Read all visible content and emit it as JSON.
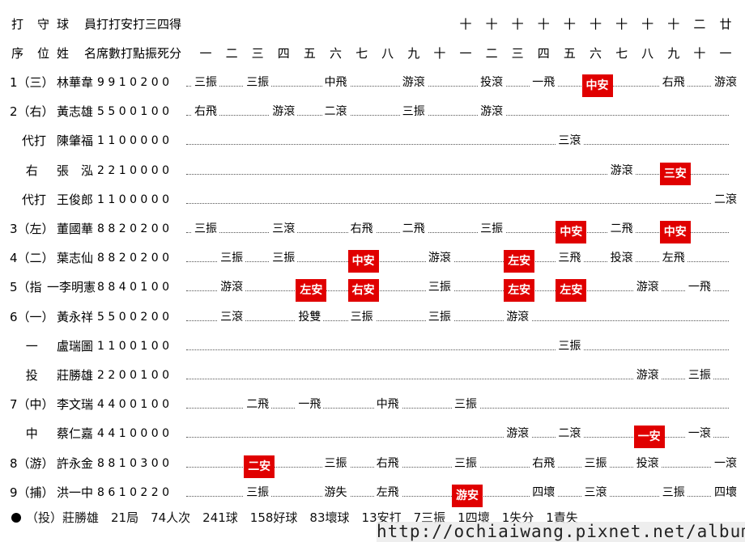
{
  "header_row1": {
    "cols": [
      "打",
      "守",
      "球",
      "員打打安打三四得"
    ],
    "innings_top": [
      "十",
      "十",
      "十",
      "十",
      "十",
      "十",
      "十",
      "十",
      "十",
      "二",
      "廿"
    ]
  },
  "header_row2": {
    "cols": [
      "序",
      "位",
      "姓",
      "名席數打點振死分"
    ],
    "innings": [
      "一",
      "二",
      "三",
      "四",
      "五",
      "六",
      "七",
      "八",
      "九",
      "十",
      "一",
      "二",
      "三",
      "四",
      "五",
      "六",
      "七",
      "八",
      "九",
      "十",
      "一"
    ]
  },
  "rows": [
    {
      "prefix": "1（三）",
      "name": "林華韋",
      "stats": "9 9 1 0 2 0 0",
      "plays": [
        {
          "inning": 1,
          "text": "三振"
        },
        {
          "inning": 3,
          "text": "三振"
        },
        {
          "inning": 6,
          "text": "中飛"
        },
        {
          "inning": 9,
          "text": "游滾"
        },
        {
          "inning": 12,
          "text": "投滾"
        },
        {
          "inning": 14,
          "text": "一飛"
        },
        {
          "inning": 16,
          "text": "中安",
          "hit": true
        },
        {
          "inning": 19,
          "text": "右飛"
        },
        {
          "inning": 21,
          "text": "游滾"
        }
      ]
    },
    {
      "prefix": "2（右）",
      "name": "黃志雄",
      "stats": "5 5 0 0 1 0 0",
      "plays": [
        {
          "inning": 1,
          "text": "右飛"
        },
        {
          "inning": 4,
          "text": "游滾"
        },
        {
          "inning": 6,
          "text": "二滾"
        },
        {
          "inning": 9,
          "text": "三振"
        },
        {
          "inning": 12,
          "text": "游滾"
        }
      ]
    },
    {
      "prefix": "　代打",
      "name": "陳肇福",
      "stats": "1 1 0 0 0 0 0",
      "plays": [
        {
          "inning": 15,
          "text": "三滾"
        }
      ]
    },
    {
      "prefix": "　 右",
      "name": "張　泓",
      "stats": "2 2 1 0 0 0 0",
      "plays": [
        {
          "inning": 17,
          "text": "游滾"
        },
        {
          "inning": 19,
          "text": "三安",
          "hit": true
        }
      ]
    },
    {
      "prefix": "　代打",
      "name": "王俊郎",
      "stats": "1 1 0 0 0 0 0",
      "plays": [
        {
          "inning": 21,
          "text": "二滾"
        }
      ]
    },
    {
      "prefix": "3（左）",
      "name": "董國華",
      "stats": "8 8 2 0 2 0 0",
      "plays": [
        {
          "inning": 1,
          "text": "三振"
        },
        {
          "inning": 4,
          "text": "三滾"
        },
        {
          "inning": 7,
          "text": "右飛"
        },
        {
          "inning": 9,
          "text": "二飛"
        },
        {
          "inning": 12,
          "text": "三振"
        },
        {
          "inning": 15,
          "text": "中安",
          "hit": true
        },
        {
          "inning": 17,
          "text": "二飛"
        },
        {
          "inning": 19,
          "text": "中安",
          "hit": true
        }
      ]
    },
    {
      "prefix": "4（二）",
      "name": "葉志仙",
      "stats": "8 8 2 0 2 0 0",
      "plays": [
        {
          "inning": 2,
          "text": "三振"
        },
        {
          "inning": 4,
          "text": "三振"
        },
        {
          "inning": 7,
          "text": "中安",
          "hit": true
        },
        {
          "inning": 10,
          "text": "游滾"
        },
        {
          "inning": 13,
          "text": "左安",
          "hit": true
        },
        {
          "inning": 15,
          "text": "三飛"
        },
        {
          "inning": 17,
          "text": "投滾"
        },
        {
          "inning": 19,
          "text": "左飛"
        }
      ]
    },
    {
      "prefix": "5（指",
      "name": "一李明憲",
      "stats": "8 8 4 0 1 0 0",
      "plays": [
        {
          "inning": 2,
          "text": "游滾"
        },
        {
          "inning": 5,
          "text": "左安",
          "hit": true
        },
        {
          "inning": 7,
          "text": "右安",
          "hit": true
        },
        {
          "inning": 10,
          "text": "三振"
        },
        {
          "inning": 13,
          "text": "左安",
          "hit": true
        },
        {
          "inning": 15,
          "text": "左安",
          "hit": true
        },
        {
          "inning": 18,
          "text": "游滾"
        },
        {
          "inning": 20,
          "text": "一飛"
        }
      ]
    },
    {
      "prefix": "6（一）",
      "name": "黃永祥",
      "stats": "5 5 0 0 2 0 0",
      "plays": [
        {
          "inning": 2,
          "text": "三滾"
        },
        {
          "inning": 5,
          "text": "投雙"
        },
        {
          "inning": 7,
          "text": "三振"
        },
        {
          "inning": 10,
          "text": "三振"
        },
        {
          "inning": 13,
          "text": "游滾"
        }
      ]
    },
    {
      "prefix": "　 一",
      "name": "盧瑞圖",
      "stats": "1 1 0 0 1 0 0",
      "plays": [
        {
          "inning": 15,
          "text": "三振"
        }
      ]
    },
    {
      "prefix": "　 投",
      "name": "莊勝雄",
      "stats": "2 2 0 0 1 0 0",
      "plays": [
        {
          "inning": 18,
          "text": "游滾"
        },
        {
          "inning": 20,
          "text": "三振"
        }
      ]
    },
    {
      "prefix": "7（中）",
      "name": "李文瑞",
      "stats": "4 4 0 0 1 0 0",
      "plays": [
        {
          "inning": 3,
          "text": "二飛"
        },
        {
          "inning": 5,
          "text": "一飛"
        },
        {
          "inning": 8,
          "text": "中飛"
        },
        {
          "inning": 11,
          "text": "三振"
        }
      ]
    },
    {
      "prefix": "　 中",
      "name": "蔡仁嘉",
      "stats": "4 4 1 0 0 0 0",
      "plays": [
        {
          "inning": 13,
          "text": "游滾"
        },
        {
          "inning": 15,
          "text": "二滾"
        },
        {
          "inning": 18,
          "text": "一安",
          "hit": true
        },
        {
          "inning": 20,
          "text": "一滾"
        }
      ]
    },
    {
      "prefix": "8（游）",
      "name": "許永金",
      "stats": "8 8 1 0 3 0 0",
      "plays": [
        {
          "inning": 3,
          "text": "二安",
          "hit": true
        },
        {
          "inning": 6,
          "text": "三振"
        },
        {
          "inning": 8,
          "text": "右飛"
        },
        {
          "inning": 11,
          "text": "三振"
        },
        {
          "inning": 14,
          "text": "右飛"
        },
        {
          "inning": 16,
          "text": "三振"
        },
        {
          "inning": 18,
          "text": "投滾"
        },
        {
          "inning": 21,
          "text": "一滾"
        }
      ]
    },
    {
      "prefix": "9（捕）",
      "name": "洪一中",
      "stats": "8 6 1 0 2 2 0",
      "plays": [
        {
          "inning": 3,
          "text": "三振"
        },
        {
          "inning": 6,
          "text": "游失"
        },
        {
          "inning": 8,
          "text": "左飛"
        },
        {
          "inning": 11,
          "text": "游安",
          "hit": true
        },
        {
          "inning": 14,
          "text": "四壞"
        },
        {
          "inning": 16,
          "text": "三滾"
        },
        {
          "inning": 19,
          "text": "三振"
        },
        {
          "inning": 21,
          "text": "四壞"
        }
      ]
    }
  ],
  "pitcher_line": "（投）莊勝雄　21局　74人次　241球　158好球　83壞球　13安打　7三振　1四壞　1失分　1責失",
  "watermark": "http://ochiaiwang.pixnet.net/album"
}
